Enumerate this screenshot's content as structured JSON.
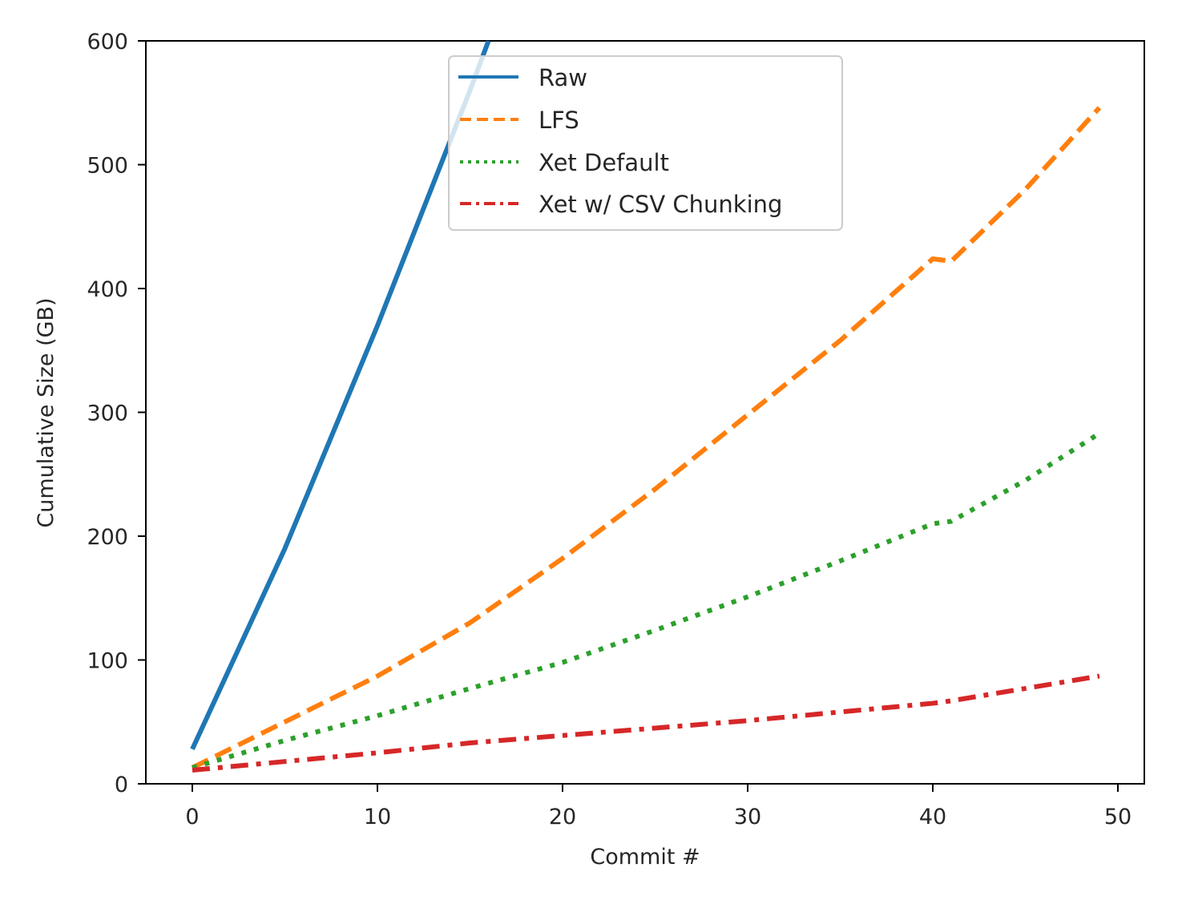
{
  "chart_data": {
    "type": "line",
    "title": "",
    "xlabel": "Commit #",
    "ylabel": "Cumulative Size (GB)",
    "xlim": [
      -2.5,
      51.5
    ],
    "ylim": [
      0,
      600
    ],
    "xticks": [
      0,
      10,
      20,
      30,
      40,
      50
    ],
    "yticks": [
      0,
      100,
      200,
      300,
      400,
      500,
      600
    ],
    "grid": false,
    "legend_position": "upper center",
    "x": [
      0,
      5,
      10,
      15,
      20,
      25,
      30,
      35,
      40,
      41,
      45,
      49
    ],
    "series": [
      {
        "name": "Raw",
        "color": "#1f77b4",
        "style": "solid",
        "x": [
          0,
          5,
          10,
          15,
          16
        ],
        "values": [
          28,
          190,
          370,
          560,
          600
        ]
      },
      {
        "name": "LFS",
        "color": "#ff7f0e",
        "style": "dashed",
        "x": [
          0,
          5,
          10,
          15,
          20,
          25,
          30,
          35,
          40,
          41,
          45,
          49
        ],
        "values": [
          13,
          50,
          87,
          130,
          182,
          238,
          298,
          358,
          424,
          422,
          480,
          546
        ]
      },
      {
        "name": "Xet Default",
        "color": "#2ca02c",
        "style": "dotted",
        "x": [
          0,
          5,
          10,
          15,
          20,
          25,
          30,
          35,
          40,
          41,
          45,
          49
        ],
        "values": [
          13,
          35,
          55,
          77,
          98,
          124,
          151,
          180,
          210,
          212,
          245,
          283
        ]
      },
      {
        "name": "Xet w/ CSV Chunking",
        "color": "#d62728",
        "style": "dashdot",
        "x": [
          0,
          5,
          10,
          15,
          20,
          25,
          30,
          35,
          40,
          41,
          45,
          49
        ],
        "values": [
          11,
          18,
          25,
          33,
          39,
          45,
          51,
          58,
          65,
          67,
          77,
          87
        ]
      }
    ]
  },
  "axes": {
    "xlabel": "Commit #",
    "ylabel": "Cumulative Size (GB)",
    "xtick_labels": [
      "0",
      "10",
      "20",
      "30",
      "40",
      "50"
    ],
    "ytick_labels": [
      "0",
      "100",
      "200",
      "300",
      "400",
      "500",
      "600"
    ]
  },
  "legend": {
    "items": [
      {
        "label": "Raw",
        "color": "#1f77b4"
      },
      {
        "label": "LFS",
        "color": "#ff7f0e"
      },
      {
        "label": "Xet Default",
        "color": "#2ca02c"
      },
      {
        "label": "Xet w/ CSV Chunking",
        "color": "#d62728"
      }
    ]
  }
}
